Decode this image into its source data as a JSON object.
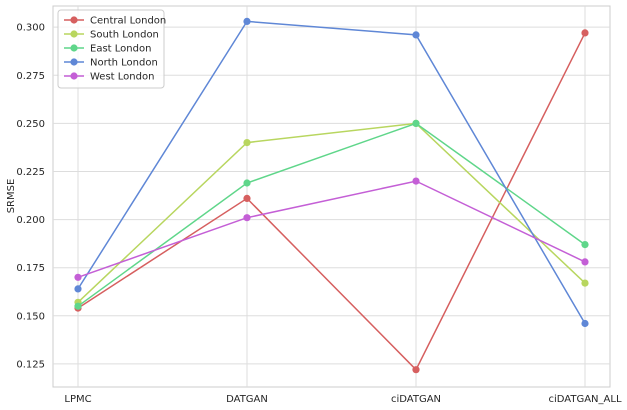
{
  "chart_data": {
    "type": "line",
    "title": "",
    "xlabel": "",
    "ylabel": "SRMSE",
    "categories": [
      "LPMC",
      "DATGAN",
      "ciDATGAN",
      "ciDATGAN_ALL"
    ],
    "ylim": [
      0.113,
      0.311
    ],
    "yticks": [
      0.125,
      0.15,
      0.175,
      0.2,
      0.225,
      0.25,
      0.275,
      0.3
    ],
    "ytick_labels": [
      "0.125",
      "0.150",
      "0.175",
      "0.200",
      "0.225",
      "0.250",
      "0.275",
      "0.300"
    ],
    "grid": true,
    "legend_position": "top-left",
    "series": [
      {
        "name": "Central London",
        "color": "#d65f5f",
        "values": [
          0.154,
          0.211,
          0.122,
          0.297
        ]
      },
      {
        "name": "South London",
        "color": "#b8d65f",
        "values": [
          0.157,
          0.24,
          0.25,
          0.167
        ]
      },
      {
        "name": "East London",
        "color": "#5fd68a",
        "values": [
          0.155,
          0.219,
          0.25,
          0.187
        ]
      },
      {
        "name": "North London",
        "color": "#5f87d6",
        "values": [
          0.164,
          0.303,
          0.296,
          0.146
        ]
      },
      {
        "name": "West London",
        "color": "#c45fd6",
        "values": [
          0.17,
          0.201,
          0.22,
          0.178
        ]
      }
    ]
  }
}
